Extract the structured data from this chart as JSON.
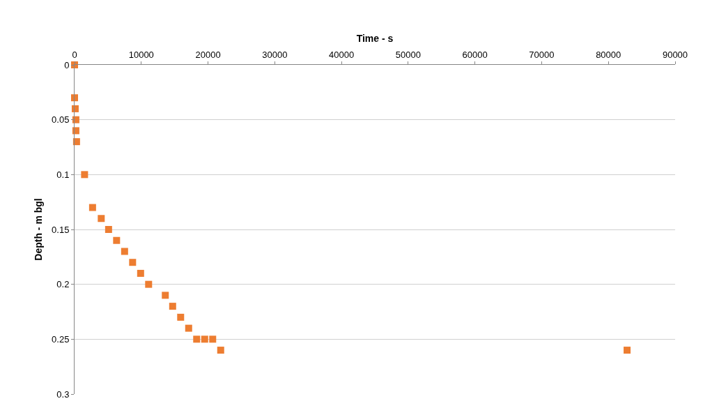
{
  "chart_data": {
    "type": "scatter",
    "xlabel": "Time - s",
    "ylabel": "Depth - m bgl",
    "x": [
      0,
      0,
      100,
      200,
      200,
      300,
      1500,
      2700,
      4000,
      5100,
      6300,
      7500,
      8700,
      9900,
      11100,
      13600,
      14700,
      15900,
      17100,
      18300,
      19500,
      20700,
      21900,
      82800
    ],
    "series": [
      {
        "color": "#ed7d31",
        "values": [
          0,
          0.03,
          0.04,
          0.05,
          0.06,
          0.07,
          0.1,
          0.13,
          0.14,
          0.15,
          0.16,
          0.17,
          0.18,
          0.19,
          0.2,
          0.21,
          0.22,
          0.23,
          0.24,
          0.25,
          0.25,
          0.25,
          0.26,
          0.26
        ]
      }
    ],
    "xlim": [
      0,
      90000
    ],
    "xticks": [
      0,
      10000,
      20000,
      30000,
      40000,
      50000,
      60000,
      70000,
      80000,
      90000
    ],
    "ylim": [
      0.3,
      0
    ],
    "yticks": [
      0,
      0.05,
      0.1,
      0.15,
      0.2,
      0.25,
      0.3
    ],
    "grid": "y",
    "marker": "square"
  }
}
